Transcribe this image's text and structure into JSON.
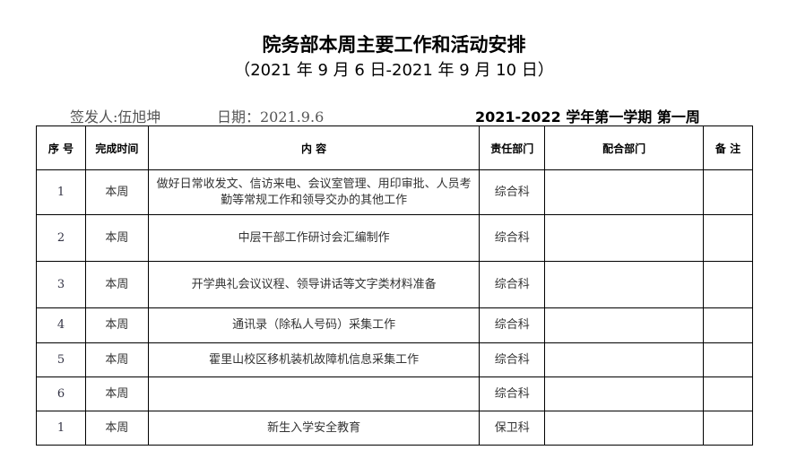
{
  "title": "院务部本周主要工作和活动安排",
  "subtitle": "（2021 年 9 月 6 日-2021 年 9 月 10 日）",
  "signer": "签发人:伍旭坤",
  "date": "日期：2021.9.6",
  "term": "2021-2022 学年第一学期  第一周",
  "headers": [
    "序 号",
    "完成时间",
    "内  容",
    "责任部门",
    "配合部门",
    "备  注"
  ],
  "rows": [
    {
      "no": "1",
      "time": "本周",
      "content": "做好日常收发文、信访来电、会议室管理、用印审批、人员考勤等常规工作和领导交办的其他工作",
      "dept": "综合科",
      "coop": "",
      "note": ""
    },
    {
      "no": "2",
      "time": "本周",
      "content": "中层干部工作研讨会汇编制作",
      "dept": "综合科",
      "coop": "",
      "note": ""
    },
    {
      "no": "3",
      "time": "本周",
      "content": "开学典礼会议议程、领导讲话等文字类材料准备",
      "dept": "综合科",
      "coop": "",
      "note": ""
    },
    {
      "no": "4",
      "time": "本周",
      "content": "通讯录（除私人号码）采集工作",
      "dept": "综合科",
      "coop": "",
      "note": ""
    },
    {
      "no": "5",
      "time": "本周",
      "content": "霍里山校区移机装机故障机信息采集工作",
      "dept": "综合科",
      "coop": "",
      "note": ""
    },
    {
      "no": "6",
      "time": "本周",
      "content": "",
      "dept": "综合科",
      "coop": "",
      "note": ""
    },
    {
      "no": "1",
      "time": "本周",
      "content": "新生入学安全教育",
      "dept": "保卫科",
      "coop": "",
      "note": ""
    }
  ]
}
